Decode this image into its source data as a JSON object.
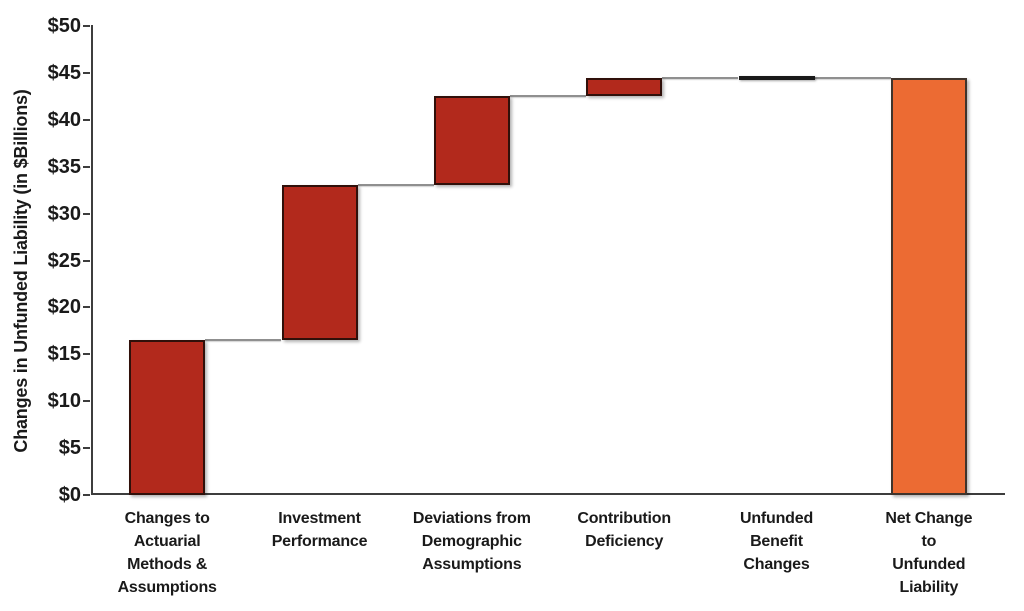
{
  "chart_data": {
    "type": "bar",
    "subtype": "waterfall",
    "title": "",
    "xlabel": "",
    "ylabel": "Changes in Unfunded Liability (in $Billions)",
    "ylim": [
      0,
      50
    ],
    "ytick_step": 5,
    "ytick_values": [
      0,
      5,
      10,
      15,
      20,
      25,
      30,
      35,
      40,
      45,
      50
    ],
    "ytick_labels": [
      "$0",
      "$5",
      "$10",
      "$15",
      "$20",
      "$25",
      "$30",
      "$35",
      "$40",
      "$45",
      "$50"
    ],
    "grid": false,
    "legend_position": "none",
    "categories": [
      "Changes to\nActuarial\nMethods &\nAssumptions",
      "Investment\nPerformance",
      "Deviations from\nDemographic\nAssumptions",
      "Contribution\nDeficiency",
      "Unfunded\nBenefit\nChanges",
      "Net Change\nto\nUnfunded\nLiability"
    ],
    "bars": [
      {
        "name": "Changes to Actuarial Methods & Assumptions",
        "start": 0,
        "end": 16.5,
        "change": 16.5,
        "role": "increase"
      },
      {
        "name": "Investment Performance",
        "start": 16.5,
        "end": 33,
        "change": 16.5,
        "role": "increase"
      },
      {
        "name": "Deviations from Demographic Assumptions",
        "start": 33,
        "end": 42.5,
        "change": 9.5,
        "role": "increase"
      },
      {
        "name": "Contribution Deficiency",
        "start": 42.5,
        "end": 44.5,
        "change": 2,
        "role": "increase"
      },
      {
        "name": "Unfunded Benefit Changes",
        "start": 44.5,
        "end": 44.5,
        "change": 0,
        "role": "flat"
      },
      {
        "name": "Net Change to Unfunded Liability",
        "start": 0,
        "end": 44.5,
        "change": 44.5,
        "role": "total"
      }
    ],
    "colors": {
      "increase": "#B2291C",
      "increase_border": "#30100A",
      "flat": "#1A1A1A",
      "total": "#EC6B33",
      "total_border": "#3F342C",
      "connector": "#8F8F8F",
      "axis": "#3D3D3D",
      "text": "#1A1A1A"
    }
  }
}
